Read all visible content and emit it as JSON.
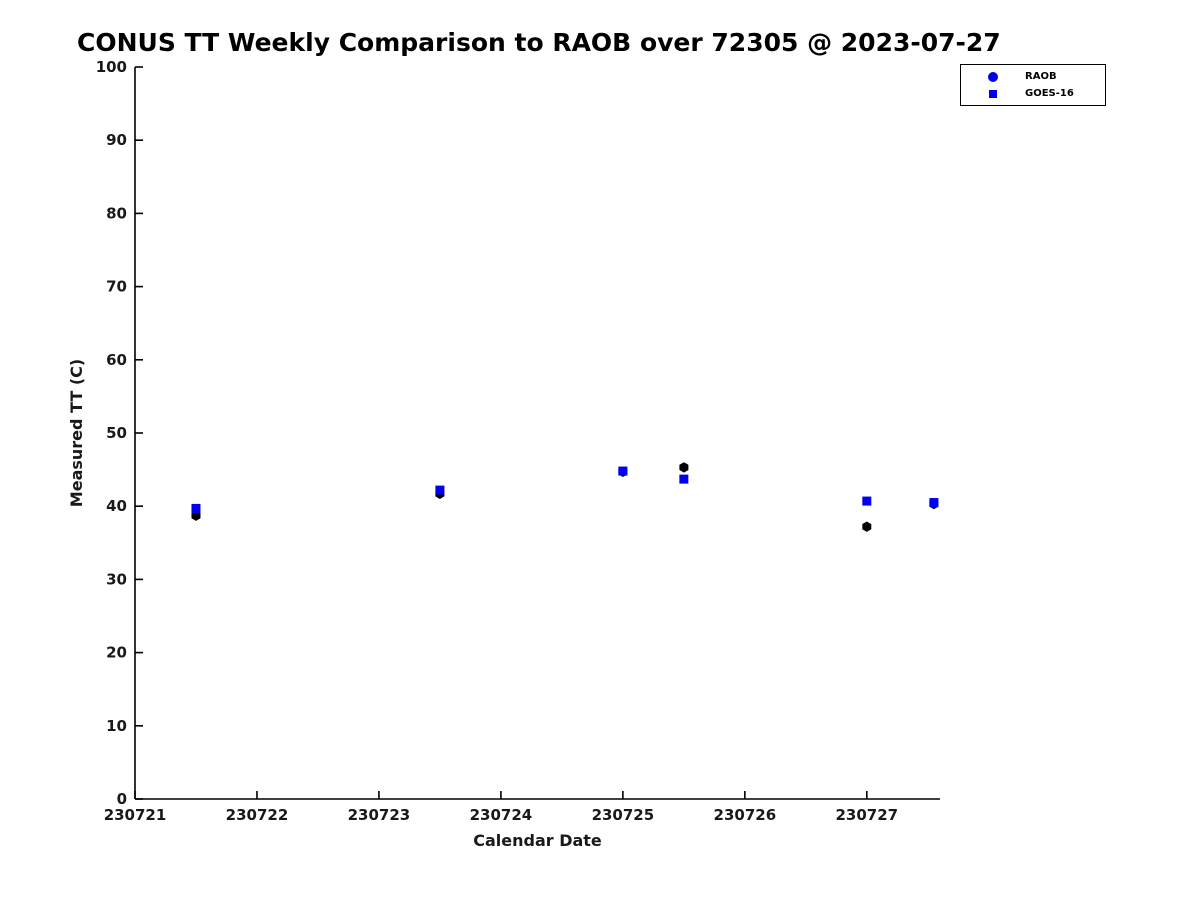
{
  "legend": {
    "items": [
      {
        "label": "RAOB",
        "marker": "circle",
        "color": "#0000EE"
      },
      {
        "label": "GOES-16",
        "marker": "square",
        "color": "#0000EE"
      }
    ]
  },
  "chart_data": {
    "type": "scatter",
    "title": "CONUS TT Weekly Comparison to RAOB over 72305 @ 2023-07-27",
    "xlabel": "Calendar Date",
    "ylabel": "Measured TT (C)",
    "xlim": [
      230721,
      230727.6
    ],
    "ylim": [
      0,
      100
    ],
    "x_ticks": [
      230721,
      230722,
      230723,
      230724,
      230725,
      230726,
      230727
    ],
    "y_tick_step": 10,
    "grid": false,
    "legend_position": "top-right",
    "series": [
      {
        "name": "RAOB",
        "marker": "hexagon",
        "color": "#000000",
        "x": [
          230721.5,
          230723.5,
          230725.0,
          230725.5,
          230727.0,
          230727.55
        ],
        "y": [
          38.7,
          41.7,
          44.7,
          45.3,
          37.2,
          40.3
        ]
      },
      {
        "name": "GOES-16",
        "marker": "square",
        "color": "#0000EE",
        "x": [
          230721.5,
          230723.5,
          230725.0,
          230725.5,
          230727.0,
          230727.55
        ],
        "y": [
          39.7,
          42.2,
          44.8,
          43.7,
          40.7,
          40.5
        ]
      }
    ]
  }
}
